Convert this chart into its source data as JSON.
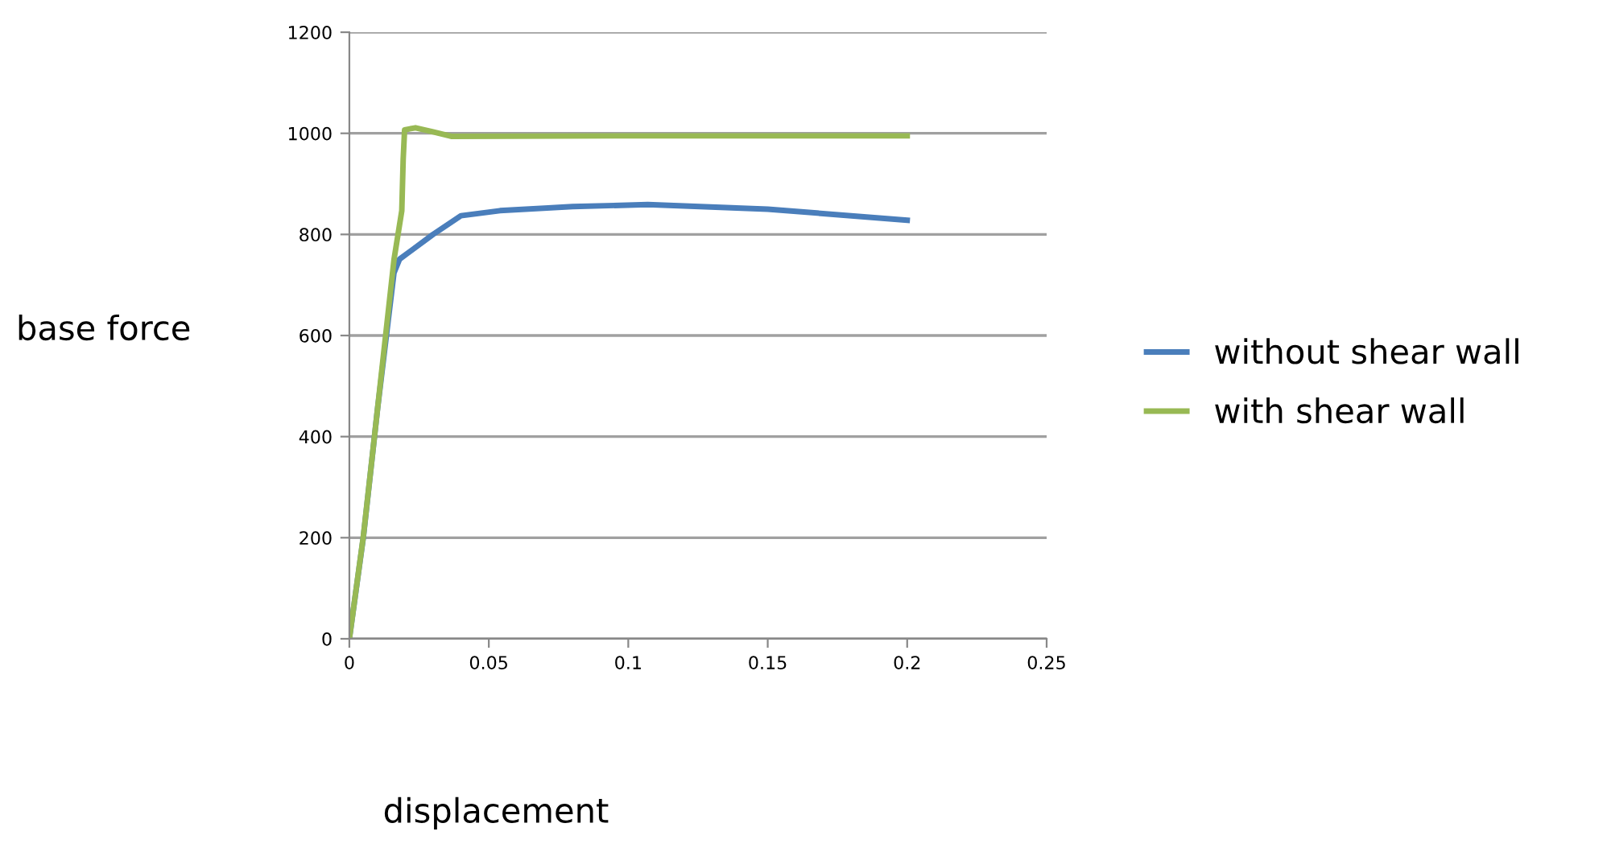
{
  "chart_data": {
    "type": "line",
    "xlabel": "displacement",
    "ylabel": "base force",
    "xlim": [
      0,
      0.25
    ],
    "xticks": [
      0,
      0.05,
      0.1,
      0.15,
      0.2,
      0.25
    ],
    "ylim": [
      0,
      1200
    ],
    "yticks": [
      0,
      200,
      400,
      600,
      800,
      1000,
      1200
    ],
    "grid": "y",
    "legend": "right",
    "marker": "none",
    "line_style": "solid",
    "series": [
      {
        "name": "without shear wall",
        "color": "#4a7ebb",
        "x": [
          0,
          0.005,
          0.01,
          0.016,
          0.018,
          0.03,
          0.04,
          0.054,
          0.08,
          0.107,
          0.15,
          0.2
        ],
        "values": [
          0,
          200,
          450,
          724,
          751,
          800,
          837,
          847,
          855,
          859,
          850,
          828
        ]
      },
      {
        "name": "with shear wall",
        "color": "#98b954",
        "x": [
          0,
          0.005,
          0.01,
          0.016,
          0.0188,
          0.0193,
          0.0198,
          0.0237,
          0.03,
          0.0365,
          0.1,
          0.2
        ],
        "values": [
          0,
          202,
          450,
          750,
          847,
          949,
          1007,
          1011,
          1003,
          994,
          995,
          995
        ]
      }
    ]
  }
}
